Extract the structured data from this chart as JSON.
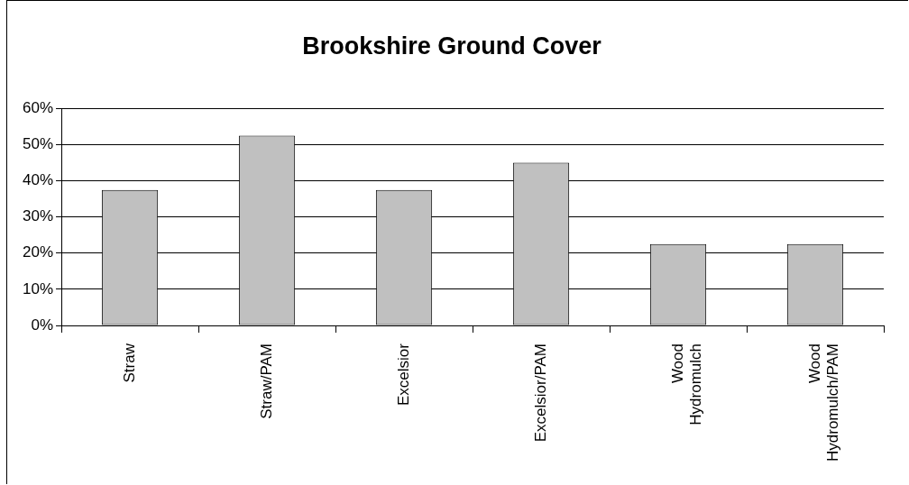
{
  "chart_data": {
    "type": "bar",
    "title": "Brookshire Ground Cover",
    "categories": [
      "Straw",
      "Straw/PAM",
      "Excelsior",
      "Excelsior/PAM",
      "Wood Hydromulch",
      "Wood Hydromulch/PAM"
    ],
    "values": [
      37.5,
      52.5,
      37.5,
      45,
      22.5,
      22.5
    ],
    "color": "#c0c0c0",
    "ylim": [
      0,
      60
    ],
    "yticks": [
      {
        "value": 0,
        "label": "0%"
      },
      {
        "value": 10,
        "label": "10%"
      },
      {
        "value": 20,
        "label": "20%"
      },
      {
        "value": 30,
        "label": "30%"
      },
      {
        "value": 40,
        "label": "40%"
      },
      {
        "value": 50,
        "label": "50%"
      },
      {
        "value": 60,
        "label": "60%"
      }
    ],
    "grid": "y",
    "legend": false
  }
}
